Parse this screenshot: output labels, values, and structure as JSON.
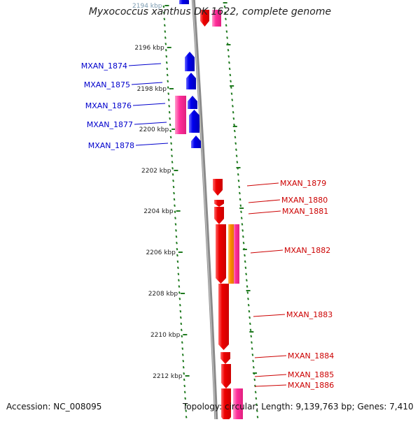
{
  "title": "Myxococcus xanthus DK 1622, complete genome",
  "accession": "Accession: NC_008095",
  "topology": "Topology: circular; Length: 9,139,763 bp; Genes: 7,410",
  "colors": {
    "backbone": "#8c8c8c",
    "tick": "#1f7a1f",
    "forward_gene": "#ee0000",
    "reverse_gene": "#0000dd",
    "forward_label": "#cc0000",
    "reverse_label": "#0000cc",
    "pink_feature": "#ff2e9a",
    "orange_feature": "#ff8c00",
    "tick_label": "#222222"
  },
  "tick_labels": [
    {
      "label": "2194 kbp",
      "kbp": 2194
    },
    {
      "label": "2196 kbp",
      "kbp": 2196
    },
    {
      "label": "2198 kbp",
      "kbp": 2198
    },
    {
      "label": "2200 kbp",
      "kbp": 2200
    },
    {
      "label": "2202 kbp",
      "kbp": 2202
    },
    {
      "label": "2204 kbp",
      "kbp": 2204
    },
    {
      "label": "2206 kbp",
      "kbp": 2206
    },
    {
      "label": "2208 kbp",
      "kbp": 2208
    },
    {
      "label": "2210 kbp",
      "kbp": 2210
    },
    {
      "label": "2212 kbp",
      "kbp": 2212
    }
  ],
  "reverse_genes": [
    {
      "name": "MXAN_1874"
    },
    {
      "name": "MXAN_1875"
    },
    {
      "name": "MXAN_1876"
    },
    {
      "name": "MXAN_1877"
    },
    {
      "name": "MXAN_1878"
    }
  ],
  "forward_genes": [
    {
      "name": "MXAN_1879"
    },
    {
      "name": "MXAN_1880"
    },
    {
      "name": "MXAN_1881"
    },
    {
      "name": "MXAN_1882"
    },
    {
      "name": "MXAN_1883"
    },
    {
      "name": "MXAN_1884"
    },
    {
      "name": "MXAN_1885"
    },
    {
      "name": "MXAN_1886"
    }
  ]
}
